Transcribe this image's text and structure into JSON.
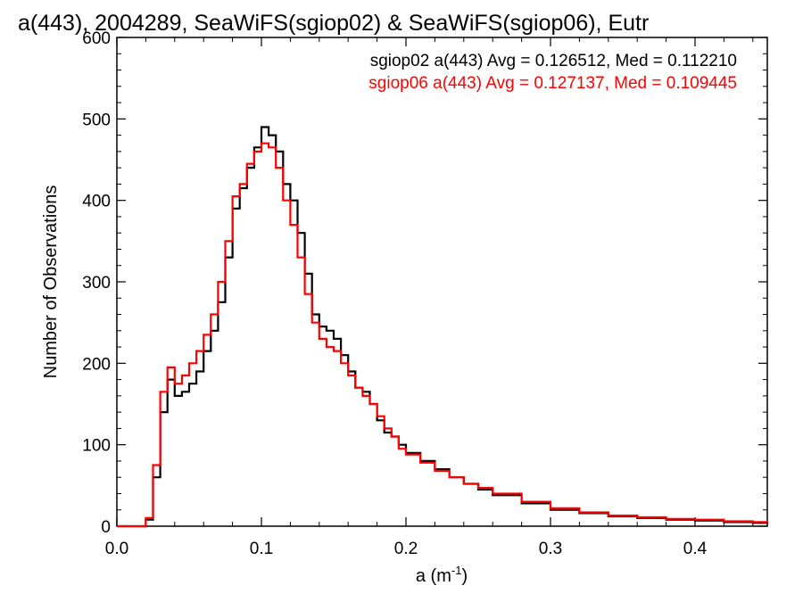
{
  "chart_data": {
    "type": "line",
    "title": "a(443), 2004289, SeaWiFS(sgiop02) & SeaWiFS(sgiop06), Eutr",
    "xlabel": "a (m",
    "xlabel_sup": "-1",
    "xlabel_close": ")",
    "ylabel": "Number of Observations",
    "xlim": [
      0.0,
      0.45
    ],
    "ylim": [
      0,
      600
    ],
    "x_ticks": [
      0.0,
      0.1,
      0.2,
      0.3,
      0.4
    ],
    "x_tick_labels": [
      "0.0",
      "0.1",
      "0.2",
      "0.3",
      "0.4"
    ],
    "y_ticks": [
      0,
      100,
      200,
      300,
      400,
      500,
      600
    ],
    "y_tick_labels": [
      "0",
      "100",
      "200",
      "300",
      "400",
      "500",
      "600"
    ],
    "grid": false,
    "legend_placement": "top-right",
    "series": [
      {
        "name": "sgiop02 a(443) Avg = 0.126512, Med = 0.112210",
        "color": "#000000",
        "x": [
          0.0,
          0.01,
          0.015,
          0.02,
          0.025,
          0.03,
          0.035,
          0.04,
          0.045,
          0.05,
          0.055,
          0.06,
          0.065,
          0.07,
          0.075,
          0.08,
          0.085,
          0.09,
          0.095,
          0.1,
          0.105,
          0.11,
          0.115,
          0.12,
          0.125,
          0.13,
          0.135,
          0.14,
          0.145,
          0.15,
          0.155,
          0.16,
          0.165,
          0.17,
          0.175,
          0.18,
          0.185,
          0.19,
          0.195,
          0.2,
          0.21,
          0.22,
          0.23,
          0.24,
          0.25,
          0.26,
          0.28,
          0.3,
          0.32,
          0.34,
          0.36,
          0.38,
          0.4,
          0.42,
          0.44,
          0.45
        ],
        "y": [
          0,
          0,
          0,
          8,
          60,
          140,
          180,
          160,
          165,
          175,
          190,
          215,
          240,
          275,
          330,
          390,
          415,
          440,
          465,
          490,
          480,
          460,
          420,
          400,
          360,
          310,
          260,
          245,
          240,
          230,
          210,
          190,
          170,
          165,
          150,
          130,
          115,
          110,
          100,
          90,
          80,
          70,
          60,
          52,
          45,
          38,
          28,
          20,
          16,
          12,
          10,
          8,
          7,
          5,
          4,
          3
        ]
      },
      {
        "name": "sgiop06 a(443) Avg = 0.127137, Med = 0.109445",
        "color": "#ff0000",
        "x": [
          0.0,
          0.01,
          0.015,
          0.02,
          0.025,
          0.03,
          0.035,
          0.04,
          0.045,
          0.05,
          0.055,
          0.06,
          0.065,
          0.07,
          0.075,
          0.08,
          0.085,
          0.09,
          0.095,
          0.1,
          0.105,
          0.11,
          0.115,
          0.12,
          0.125,
          0.13,
          0.135,
          0.14,
          0.145,
          0.15,
          0.155,
          0.16,
          0.165,
          0.17,
          0.175,
          0.18,
          0.185,
          0.19,
          0.195,
          0.2,
          0.21,
          0.22,
          0.23,
          0.24,
          0.25,
          0.26,
          0.28,
          0.3,
          0.32,
          0.34,
          0.36,
          0.38,
          0.4,
          0.42,
          0.44,
          0.45
        ],
        "y": [
          0,
          0,
          0,
          10,
          75,
          165,
          195,
          175,
          185,
          200,
          215,
          235,
          260,
          300,
          350,
          405,
          420,
          445,
          460,
          470,
          465,
          440,
          400,
          370,
          330,
          285,
          250,
          230,
          220,
          215,
          200,
          185,
          170,
          160,
          150,
          135,
          120,
          110,
          95,
          88,
          78,
          68,
          60,
          52,
          47,
          40,
          30,
          22,
          17,
          13,
          11,
          9,
          8,
          6,
          5,
          4
        ]
      }
    ]
  }
}
